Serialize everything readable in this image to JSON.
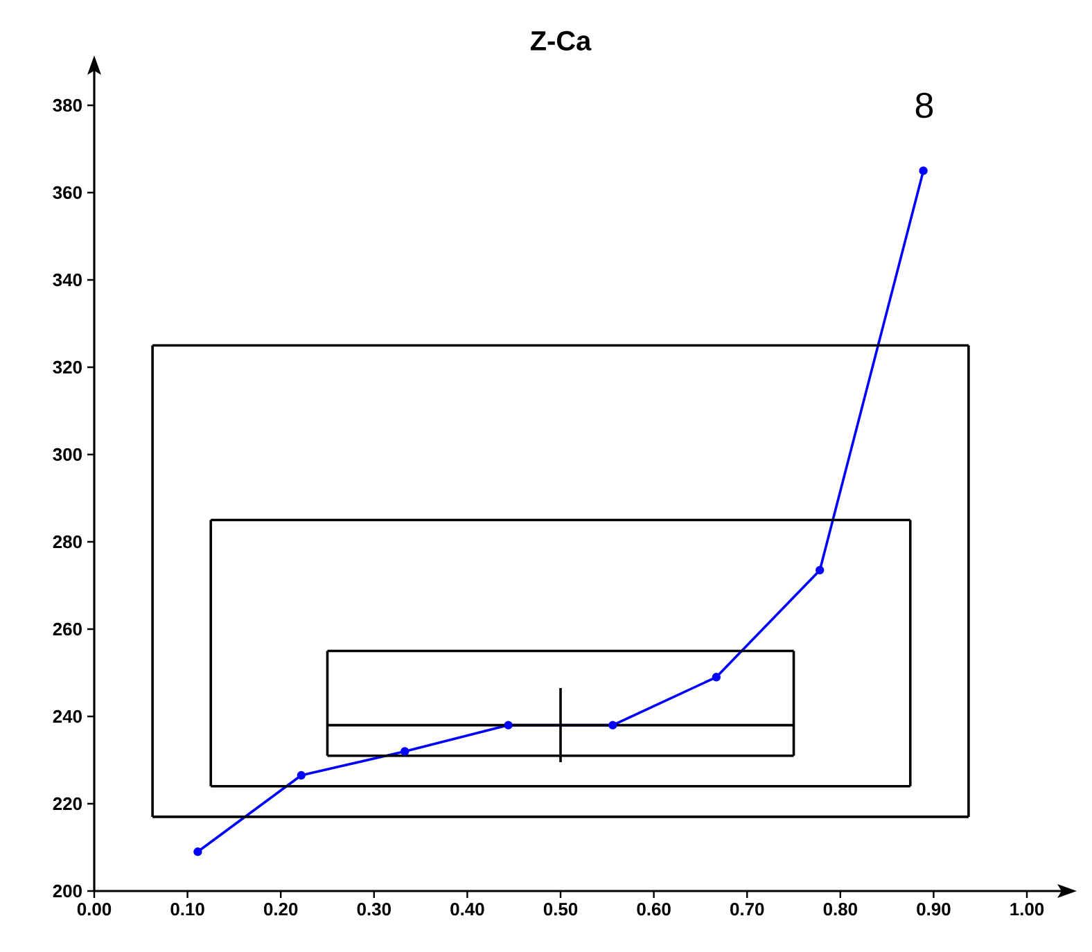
{
  "chart_data": {
    "type": "line",
    "title": "Z-Ca",
    "xlim": [
      0,
      1.0
    ],
    "ylim": [
      200,
      380
    ],
    "xticks": [
      {
        "value": 0,
        "label": "0.00"
      },
      {
        "value": 0.1,
        "label": "0.10"
      },
      {
        "value": 0.2,
        "label": "0.20"
      },
      {
        "value": 0.3,
        "label": "0.30"
      },
      {
        "value": 0.4,
        "label": "0.40"
      },
      {
        "value": 0.5,
        "label": "0.50"
      },
      {
        "value": 0.6,
        "label": "0.60"
      },
      {
        "value": 0.7,
        "label": "0.70"
      },
      {
        "value": 0.8,
        "label": "0.80"
      },
      {
        "value": 0.9,
        "label": "0.90"
      },
      {
        "value": 1.0,
        "label": "1.00"
      }
    ],
    "yticks": [
      200,
      220,
      240,
      260,
      280,
      300,
      320,
      340,
      360,
      380
    ],
    "series": [
      {
        "color": "#0000ff",
        "marker": "circle",
        "x": [
          0.111,
          0.222,
          0.333,
          0.444,
          0.556,
          0.667,
          0.778,
          0.889
        ],
        "values": [
          209,
          226.5,
          232,
          238,
          238,
          249,
          273.5,
          365
        ]
      },
      {
        "color": "#000000",
        "marker": "none",
        "x": [
          0.0625,
          0.9375
        ],
        "values": [
          217,
          217
        ]
      },
      {
        "color": "#000000",
        "marker": "none",
        "x": [
          0.0625,
          0.9375
        ],
        "values": [
          325,
          325
        ]
      },
      {
        "color": "#000000",
        "marker": "none",
        "x": [
          0.0625,
          0.0625
        ],
        "values": [
          217,
          325
        ]
      },
      {
        "color": "#000000",
        "marker": "none",
        "x": [
          0.9375,
          0.9375
        ],
        "values": [
          217,
          325
        ]
      },
      {
        "color": "#000000",
        "marker": "none",
        "x": [
          0.125,
          0.875
        ],
        "values": [
          224,
          224
        ]
      },
      {
        "color": "#000000",
        "marker": "none",
        "x": [
          0.125,
          0.875
        ],
        "values": [
          285,
          285
        ]
      },
      {
        "color": "#000000",
        "marker": "none",
        "x": [
          0.125,
          0.125
        ],
        "values": [
          224,
          285
        ]
      },
      {
        "color": "#000000",
        "marker": "none",
        "x": [
          0.875,
          0.875
        ],
        "values": [
          224,
          285
        ]
      },
      {
        "color": "#000000",
        "marker": "none",
        "x": [
          0.25,
          0.75
        ],
        "values": [
          231,
          231
        ]
      },
      {
        "color": "#000000",
        "marker": "none",
        "x": [
          0.25,
          0.75
        ],
        "values": [
          255,
          255
        ]
      },
      {
        "color": "#000000",
        "marker": "none",
        "x": [
          0.25,
          0.25
        ],
        "values": [
          231,
          255
        ]
      },
      {
        "color": "#000000",
        "marker": "none",
        "x": [
          0.75,
          0.75
        ],
        "values": [
          231,
          255
        ]
      },
      {
        "color": "#000000",
        "marker": "none",
        "x": [
          0.25,
          0.75
        ],
        "values": [
          238,
          238
        ]
      },
      {
        "color": "#000000",
        "marker": "none",
        "x": [
          0.5,
          0.5
        ],
        "values": [
          229.5,
          246.5
        ]
      }
    ],
    "annotations": [
      "8"
    ]
  }
}
